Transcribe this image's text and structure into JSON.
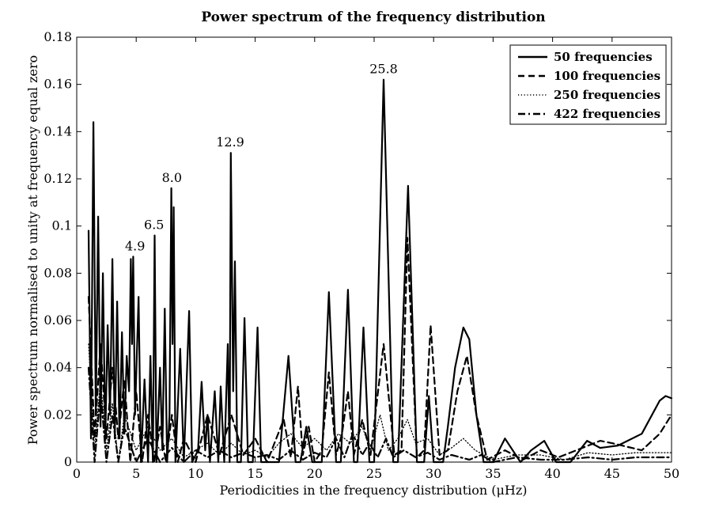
{
  "chart_data": {
    "type": "line",
    "title": "Power spectrum of the frequency distribution",
    "xlabel": "Periodicities in the frequency distribution (μHz)",
    "ylabel": "Power spectrum normalised to unity at frequency equal zero",
    "xlim": [
      0,
      50
    ],
    "ylim": [
      0,
      0.18
    ],
    "x_ticks": [
      0,
      5,
      10,
      15,
      20,
      25,
      30,
      35,
      40,
      45,
      50
    ],
    "x_tick_labels": [
      "0",
      "5",
      "10",
      "15",
      "20",
      "25",
      "30",
      "35",
      "40",
      "45",
      "50"
    ],
    "y_ticks": [
      0,
      0.02,
      0.04,
      0.06,
      0.08,
      0.1,
      0.12,
      0.14,
      0.16,
      0.18
    ],
    "y_tick_labels": [
      "0",
      "0.02",
      "0.04",
      "0.06",
      "0.08",
      "0.1",
      "0.12",
      "0.14",
      "0.16",
      "0.18"
    ],
    "grid": false,
    "legend_position": "top-right",
    "series": [
      {
        "name": "50 frequencies",
        "style": "solid",
        "points": [
          [
            1.0,
            0.098
          ],
          [
            1.2,
            0.01
          ],
          [
            1.4,
            0.144
          ],
          [
            1.6,
            0.02
          ],
          [
            1.8,
            0.104
          ],
          [
            2.0,
            0.015
          ],
          [
            2.2,
            0.08
          ],
          [
            2.4,
            0.01
          ],
          [
            2.6,
            0.058
          ],
          [
            2.8,
            0.02
          ],
          [
            3.0,
            0.086
          ],
          [
            3.2,
            0.01
          ],
          [
            3.4,
            0.068
          ],
          [
            3.6,
            0.01
          ],
          [
            3.8,
            0.055
          ],
          [
            4.0,
            0.012
          ],
          [
            4.2,
            0.045
          ],
          [
            4.4,
            0.03
          ],
          [
            4.55,
            0.086
          ],
          [
            4.65,
            0.05
          ],
          [
            4.75,
            0.087
          ],
          [
            4.9,
            0.02
          ],
          [
            5.2,
            0.07
          ],
          [
            5.4,
            0.0
          ],
          [
            5.7,
            0.035
          ],
          [
            6.0,
            0.0
          ],
          [
            6.2,
            0.045
          ],
          [
            6.4,
            0.0
          ],
          [
            6.55,
            0.096
          ],
          [
            6.7,
            0.0
          ],
          [
            7.0,
            0.04
          ],
          [
            7.2,
            0.005
          ],
          [
            7.4,
            0.065
          ],
          [
            7.6,
            0.0
          ],
          [
            7.8,
            0.02
          ],
          [
            7.95,
            0.116
          ],
          [
            8.05,
            0.05
          ],
          [
            8.15,
            0.108
          ],
          [
            8.3,
            0.0
          ],
          [
            8.7,
            0.048
          ],
          [
            9.0,
            0.0
          ],
          [
            9.45,
            0.064
          ],
          [
            9.7,
            0.0
          ],
          [
            10.2,
            0.005
          ],
          [
            10.5,
            0.034
          ],
          [
            10.8,
            0.005
          ],
          [
            11.0,
            0.02
          ],
          [
            11.2,
            0.0
          ],
          [
            11.6,
            0.03
          ],
          [
            11.9,
            0.0
          ],
          [
            12.1,
            0.032
          ],
          [
            12.4,
            0.0
          ],
          [
            12.7,
            0.05
          ],
          [
            12.85,
            0.0
          ],
          [
            12.95,
            0.131
          ],
          [
            13.15,
            0.03
          ],
          [
            13.3,
            0.085
          ],
          [
            13.5,
            0.0
          ],
          [
            13.8,
            0.0
          ],
          [
            14.1,
            0.061
          ],
          [
            14.4,
            0.0
          ],
          [
            14.8,
            0.0
          ],
          [
            15.2,
            0.057
          ],
          [
            15.5,
            0.0
          ],
          [
            17.0,
            0.0
          ],
          [
            17.8,
            0.045
          ],
          [
            18.4,
            0.0
          ],
          [
            18.8,
            0.0
          ],
          [
            19.3,
            0.015
          ],
          [
            19.8,
            0.0
          ],
          [
            20.6,
            0.0
          ],
          [
            21.2,
            0.072
          ],
          [
            21.8,
            0.0
          ],
          [
            22.2,
            0.0
          ],
          [
            22.8,
            0.073
          ],
          [
            23.3,
            0.0
          ],
          [
            23.6,
            0.0
          ],
          [
            24.1,
            0.057
          ],
          [
            24.6,
            0.0
          ],
          [
            25.0,
            0.0
          ],
          [
            25.8,
            0.162
          ],
          [
            26.6,
            0.0
          ],
          [
            27.0,
            0.0
          ],
          [
            27.85,
            0.117
          ],
          [
            28.6,
            0.0
          ],
          [
            29.2,
            0.0
          ],
          [
            29.6,
            0.028
          ],
          [
            30.0,
            0.0
          ],
          [
            30.8,
            0.0
          ],
          [
            31.2,
            0.015
          ],
          [
            31.8,
            0.04
          ],
          [
            32.5,
            0.057
          ],
          [
            33.0,
            0.052
          ],
          [
            33.6,
            0.02
          ],
          [
            34.2,
            0.0
          ],
          [
            35.0,
            0.0
          ],
          [
            36.0,
            0.01
          ],
          [
            37.3,
            0.0
          ],
          [
            38.2,
            0.005
          ],
          [
            39.3,
            0.009
          ],
          [
            40.3,
            0.0
          ],
          [
            41.5,
            0.0
          ],
          [
            42.9,
            0.009
          ],
          [
            44.0,
            0.006
          ],
          [
            45.5,
            0.007
          ],
          [
            47.5,
            0.012
          ],
          [
            49.0,
            0.026
          ],
          [
            49.5,
            0.028
          ],
          [
            50.0,
            0.027
          ]
        ]
      },
      {
        "name": "100 frequencies",
        "style": "dashed",
        "points": [
          [
            1.0,
            0.07
          ],
          [
            1.5,
            0.01
          ],
          [
            2.0,
            0.05
          ],
          [
            2.5,
            0.01
          ],
          [
            3.0,
            0.04
          ],
          [
            3.5,
            0.01
          ],
          [
            4.0,
            0.035
          ],
          [
            4.5,
            0.0
          ],
          [
            5.0,
            0.03
          ],
          [
            5.5,
            0.0
          ],
          [
            6.0,
            0.02
          ],
          [
            6.5,
            0.0
          ],
          [
            7.0,
            0.015
          ],
          [
            7.5,
            0.0
          ],
          [
            8.0,
            0.02
          ],
          [
            8.5,
            0.0
          ],
          [
            9.0,
            0.01
          ],
          [
            10.0,
            0.0
          ],
          [
            11.0,
            0.02
          ],
          [
            12.0,
            0.003
          ],
          [
            13.0,
            0.02
          ],
          [
            14.0,
            0.003
          ],
          [
            15.0,
            0.01
          ],
          [
            16.0,
            0.0
          ],
          [
            17.4,
            0.018
          ],
          [
            18.0,
            0.002
          ],
          [
            18.6,
            0.032
          ],
          [
            19.0,
            0.003
          ],
          [
            19.5,
            0.015
          ],
          [
            20.0,
            0.0
          ],
          [
            20.6,
            0.005
          ],
          [
            21.2,
            0.038
          ],
          [
            21.8,
            0.003
          ],
          [
            22.3,
            0.012
          ],
          [
            22.8,
            0.03
          ],
          [
            23.3,
            0.003
          ],
          [
            24.0,
            0.018
          ],
          [
            24.7,
            0.003
          ],
          [
            25.8,
            0.05
          ],
          [
            26.7,
            0.003
          ],
          [
            27.3,
            0.005
          ],
          [
            27.8,
            0.095
          ],
          [
            28.6,
            0.002
          ],
          [
            29.2,
            0.005
          ],
          [
            29.75,
            0.058
          ],
          [
            30.5,
            0.003
          ],
          [
            31.2,
            0.005
          ],
          [
            32.0,
            0.03
          ],
          [
            32.8,
            0.045
          ],
          [
            33.6,
            0.02
          ],
          [
            34.5,
            0.001
          ],
          [
            36.0,
            0.005
          ],
          [
            37.5,
            0.001
          ],
          [
            39.0,
            0.005
          ],
          [
            40.5,
            0.002
          ],
          [
            42.0,
            0.005
          ],
          [
            44.0,
            0.009
          ],
          [
            45.0,
            0.008
          ],
          [
            47.5,
            0.005
          ],
          [
            49.0,
            0.012
          ],
          [
            50.0,
            0.02
          ]
        ]
      },
      {
        "name": "250 frequencies",
        "style": "dotted",
        "points": [
          [
            1.0,
            0.05
          ],
          [
            1.5,
            0.005
          ],
          [
            2.0,
            0.035
          ],
          [
            2.5,
            0.005
          ],
          [
            3.0,
            0.025
          ],
          [
            3.5,
            0.0
          ],
          [
            4.0,
            0.02
          ],
          [
            5.0,
            0.005
          ],
          [
            6.0,
            0.015
          ],
          [
            7.0,
            0.005
          ],
          [
            8.0,
            0.01
          ],
          [
            9.0,
            0.002
          ],
          [
            10.0,
            0.005
          ],
          [
            11.0,
            0.008
          ],
          [
            12.0,
            0.003
          ],
          [
            13.0,
            0.008
          ],
          [
            14.0,
            0.003
          ],
          [
            15.0,
            0.005
          ],
          [
            16.0,
            0.002
          ],
          [
            17.0,
            0.008
          ],
          [
            18.0,
            0.012
          ],
          [
            19.0,
            0.006
          ],
          [
            20.0,
            0.01
          ],
          [
            21.0,
            0.005
          ],
          [
            22.0,
            0.012
          ],
          [
            23.0,
            0.008
          ],
          [
            24.0,
            0.015
          ],
          [
            24.7,
            0.005
          ],
          [
            25.5,
            0.02
          ],
          [
            26.2,
            0.005
          ],
          [
            27.0,
            0.01
          ],
          [
            27.8,
            0.018
          ],
          [
            28.5,
            0.008
          ],
          [
            29.5,
            0.01
          ],
          [
            30.5,
            0.003
          ],
          [
            31.5,
            0.006
          ],
          [
            32.5,
            0.01
          ],
          [
            33.5,
            0.005
          ],
          [
            35.0,
            0.001
          ],
          [
            37.0,
            0.003
          ],
          [
            39.0,
            0.003
          ],
          [
            41.0,
            0.001
          ],
          [
            43.0,
            0.004
          ],
          [
            45.0,
            0.003
          ],
          [
            47.0,
            0.004
          ],
          [
            49.0,
            0.004
          ],
          [
            50.0,
            0.004
          ]
        ]
      },
      {
        "name": "422 frequencies",
        "style": "dashdot",
        "points": [
          [
            1.0,
            0.04
          ],
          [
            1.5,
            0.0
          ],
          [
            2.0,
            0.03
          ],
          [
            2.5,
            0.0
          ],
          [
            3.0,
            0.02
          ],
          [
            3.5,
            0.0
          ],
          [
            4.0,
            0.015
          ],
          [
            5.0,
            0.0
          ],
          [
            6.0,
            0.01
          ],
          [
            7.0,
            0.0
          ],
          [
            8.0,
            0.006
          ],
          [
            9.0,
            0.0
          ],
          [
            10.0,
            0.005
          ],
          [
            11.0,
            0.002
          ],
          [
            12.0,
            0.005
          ],
          [
            13.0,
            0.002
          ],
          [
            14.0,
            0.004
          ],
          [
            15.0,
            0.002
          ],
          [
            16.0,
            0.003
          ],
          [
            17.0,
            0.001
          ],
          [
            18.0,
            0.005
          ],
          [
            19.0,
            0.001
          ],
          [
            20.0,
            0.004
          ],
          [
            21.0,
            0.002
          ],
          [
            21.8,
            0.01
          ],
          [
            22.5,
            0.002
          ],
          [
            23.2,
            0.012
          ],
          [
            24.0,
            0.003
          ],
          [
            24.6,
            0.008
          ],
          [
            25.3,
            0.002
          ],
          [
            26.0,
            0.01
          ],
          [
            26.6,
            0.002
          ],
          [
            27.5,
            0.005
          ],
          [
            28.5,
            0.002
          ],
          [
            29.5,
            0.004
          ],
          [
            30.5,
            0.001
          ],
          [
            31.5,
            0.003
          ],
          [
            33.0,
            0.001
          ],
          [
            34.0,
            0.003
          ],
          [
            35.0,
            0.0
          ],
          [
            37.0,
            0.002
          ],
          [
            39.0,
            0.001
          ],
          [
            41.0,
            0.001
          ],
          [
            43.0,
            0.002
          ],
          [
            45.0,
            0.001
          ],
          [
            47.0,
            0.002
          ],
          [
            49.0,
            0.002
          ],
          [
            50.0,
            0.002
          ]
        ]
      }
    ],
    "annotations": [
      {
        "text": "4.9",
        "x": 4.9,
        "y": 0.087
      },
      {
        "text": "6.5",
        "x": 6.5,
        "y": 0.096
      },
      {
        "text": "8.0",
        "x": 8.0,
        "y": 0.116
      },
      {
        "text": "12.9",
        "x": 12.9,
        "y": 0.131
      },
      {
        "text": "25.8",
        "x": 25.8,
        "y": 0.162
      }
    ]
  }
}
